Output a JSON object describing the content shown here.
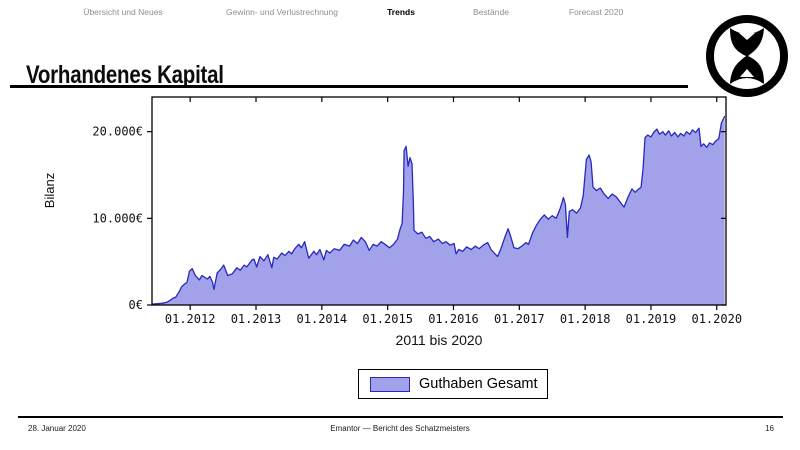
{
  "nav": {
    "items": [
      {
        "label": "Übersicht und Neues",
        "active": false
      },
      {
        "label": "Gewinn- und Verlustrechnung",
        "active": false
      },
      {
        "label": "Trends",
        "active": true
      },
      {
        "label": "Bestände",
        "active": false
      },
      {
        "label": "Forecast 2020",
        "active": false
      }
    ]
  },
  "title": "Vorhandenes Kapital",
  "logo": {
    "name": "hourglass-emblem"
  },
  "chart_data": {
    "type": "area",
    "title": "",
    "xlabel": "2011 bis 2020",
    "ylabel": "Bilanz",
    "xlim": [
      2011.42,
      2020.14
    ],
    "ylim": [
      0,
      24000
    ],
    "grid": false,
    "x_ticks": [
      "01.2012",
      "01.2013",
      "01.2014",
      "01.2015",
      "01.2016",
      "01.2017",
      "01.2018",
      "01.2019",
      "01.2020"
    ],
    "x_tick_values": [
      2012,
      2013,
      2014,
      2015,
      2016,
      2017,
      2018,
      2019,
      2020
    ],
    "y_ticks": [
      {
        "value": 0,
        "label": "0€"
      },
      {
        "value": 10000,
        "label": "10.000€"
      },
      {
        "value": 20000,
        "label": "20.000€"
      }
    ],
    "legend": {
      "position": "bottom-center",
      "entries": [
        {
          "label": "Guthaben Gesamt",
          "fill": "#a2a2ea",
          "stroke": "#2828be"
        }
      ]
    },
    "series": [
      {
        "name": "Guthaben Gesamt",
        "points": [
          [
            2011.42,
            100
          ],
          [
            2011.5,
            150
          ],
          [
            2011.57,
            200
          ],
          [
            2011.64,
            300
          ],
          [
            2011.7,
            550
          ],
          [
            2011.74,
            800
          ],
          [
            2011.78,
            900
          ],
          [
            2011.83,
            1500
          ],
          [
            2011.87,
            2100
          ],
          [
            2011.91,
            2400
          ],
          [
            2011.95,
            2600
          ],
          [
            2011.99,
            3900
          ],
          [
            2012.03,
            4200
          ],
          [
            2012.08,
            3400
          ],
          [
            2012.14,
            2900
          ],
          [
            2012.18,
            3400
          ],
          [
            2012.26,
            3000
          ],
          [
            2012.3,
            3300
          ],
          [
            2012.34,
            2600
          ],
          [
            2012.36,
            1800
          ],
          [
            2012.41,
            3700
          ],
          [
            2012.46,
            4100
          ],
          [
            2012.51,
            4600
          ],
          [
            2012.57,
            3400
          ],
          [
            2012.64,
            3600
          ],
          [
            2012.71,
            4300
          ],
          [
            2012.76,
            4000
          ],
          [
            2012.82,
            4600
          ],
          [
            2012.86,
            4400
          ],
          [
            2012.94,
            5200
          ],
          [
            2012.97,
            5300
          ],
          [
            2013.01,
            4400
          ],
          [
            2013.06,
            5600
          ],
          [
            2013.12,
            5100
          ],
          [
            2013.18,
            5800
          ],
          [
            2013.24,
            4300
          ],
          [
            2013.27,
            5500
          ],
          [
            2013.32,
            5300
          ],
          [
            2013.39,
            6000
          ],
          [
            2013.44,
            5700
          ],
          [
            2013.5,
            6200
          ],
          [
            2013.54,
            5900
          ],
          [
            2013.59,
            6500
          ],
          [
            2013.65,
            7000
          ],
          [
            2013.69,
            6600
          ],
          [
            2013.74,
            7300
          ],
          [
            2013.8,
            5400
          ],
          [
            2013.88,
            6200
          ],
          [
            2013.92,
            5800
          ],
          [
            2013.97,
            6400
          ],
          [
            2014.03,
            5200
          ],
          [
            2014.07,
            6300
          ],
          [
            2014.12,
            6000
          ],
          [
            2014.19,
            6500
          ],
          [
            2014.27,
            6300
          ],
          [
            2014.34,
            7000
          ],
          [
            2014.42,
            6800
          ],
          [
            2014.48,
            7500
          ],
          [
            2014.54,
            7100
          ],
          [
            2014.6,
            7800
          ],
          [
            2014.66,
            7300
          ],
          [
            2014.72,
            6300
          ],
          [
            2014.78,
            7000
          ],
          [
            2014.84,
            6800
          ],
          [
            2014.9,
            7300
          ],
          [
            2014.96,
            7000
          ],
          [
            2015.03,
            6600
          ],
          [
            2015.09,
            7000
          ],
          [
            2015.15,
            7600
          ],
          [
            2015.19,
            8800
          ],
          [
            2015.22,
            9400
          ],
          [
            2015.24,
            13000
          ],
          [
            2015.25,
            17800
          ],
          [
            2015.28,
            18300
          ],
          [
            2015.31,
            16000
          ],
          [
            2015.34,
            17000
          ],
          [
            2015.37,
            16300
          ],
          [
            2015.39,
            12000
          ],
          [
            2015.4,
            8600
          ],
          [
            2015.46,
            8200
          ],
          [
            2015.52,
            8400
          ],
          [
            2015.58,
            7700
          ],
          [
            2015.64,
            7900
          ],
          [
            2015.7,
            7300
          ],
          [
            2015.77,
            7600
          ],
          [
            2015.83,
            7100
          ],
          [
            2015.89,
            7300
          ],
          [
            2015.95,
            6900
          ],
          [
            2016.01,
            7100
          ],
          [
            2016.04,
            5900
          ],
          [
            2016.08,
            6400
          ],
          [
            2016.14,
            6200
          ],
          [
            2016.2,
            6700
          ],
          [
            2016.27,
            6400
          ],
          [
            2016.33,
            6800
          ],
          [
            2016.39,
            6500
          ],
          [
            2016.45,
            6900
          ],
          [
            2016.52,
            7200
          ],
          [
            2016.57,
            6400
          ],
          [
            2016.63,
            5900
          ],
          [
            2016.67,
            5600
          ],
          [
            2016.72,
            6500
          ],
          [
            2016.78,
            7800
          ],
          [
            2016.83,
            8800
          ],
          [
            2016.87,
            7900
          ],
          [
            2016.92,
            6600
          ],
          [
            2016.98,
            6500
          ],
          [
            2017.04,
            6800
          ],
          [
            2017.1,
            7200
          ],
          [
            2017.14,
            7000
          ],
          [
            2017.2,
            8300
          ],
          [
            2017.26,
            9200
          ],
          [
            2017.32,
            9900
          ],
          [
            2017.38,
            10400
          ],
          [
            2017.44,
            9900
          ],
          [
            2017.5,
            10300
          ],
          [
            2017.56,
            10000
          ],
          [
            2017.62,
            11100
          ],
          [
            2017.67,
            12400
          ],
          [
            2017.7,
            11600
          ],
          [
            2017.73,
            7800
          ],
          [
            2017.76,
            10800
          ],
          [
            2017.81,
            11000
          ],
          [
            2017.87,
            10600
          ],
          [
            2017.93,
            11200
          ],
          [
            2017.97,
            12600
          ],
          [
            2018.02,
            16800
          ],
          [
            2018.06,
            17300
          ],
          [
            2018.09,
            16500
          ],
          [
            2018.12,
            13600
          ],
          [
            2018.17,
            13200
          ],
          [
            2018.23,
            13500
          ],
          [
            2018.29,
            12800
          ],
          [
            2018.35,
            12300
          ],
          [
            2018.41,
            12800
          ],
          [
            2018.47,
            12500
          ],
          [
            2018.53,
            11900
          ],
          [
            2018.59,
            11300
          ],
          [
            2018.65,
            12400
          ],
          [
            2018.71,
            13400
          ],
          [
            2018.76,
            13000
          ],
          [
            2018.8,
            13300
          ],
          [
            2018.85,
            13600
          ],
          [
            2018.88,
            15800
          ],
          [
            2018.91,
            19300
          ],
          [
            2018.95,
            19600
          ],
          [
            2019.0,
            19400
          ],
          [
            2019.04,
            19900
          ],
          [
            2019.09,
            20300
          ],
          [
            2019.13,
            19700
          ],
          [
            2019.18,
            20000
          ],
          [
            2019.22,
            19600
          ],
          [
            2019.27,
            20100
          ],
          [
            2019.31,
            19500
          ],
          [
            2019.36,
            19900
          ],
          [
            2019.41,
            19400
          ],
          [
            2019.45,
            19800
          ],
          [
            2019.5,
            19500
          ],
          [
            2019.54,
            20000
          ],
          [
            2019.59,
            19700
          ],
          [
            2019.63,
            20200
          ],
          [
            2019.68,
            19900
          ],
          [
            2019.73,
            20400
          ],
          [
            2019.76,
            18300
          ],
          [
            2019.8,
            18600
          ],
          [
            2019.85,
            18200
          ],
          [
            2019.89,
            18700
          ],
          [
            2019.94,
            18500
          ],
          [
            2019.98,
            18900
          ],
          [
            2020.03,
            19200
          ],
          [
            2020.07,
            21000
          ],
          [
            2020.12,
            21800
          ]
        ]
      }
    ]
  },
  "footer": {
    "date": "28. Januar 2020",
    "center": "Emantor — Bericht des Schatzmeisters",
    "page": "16"
  }
}
